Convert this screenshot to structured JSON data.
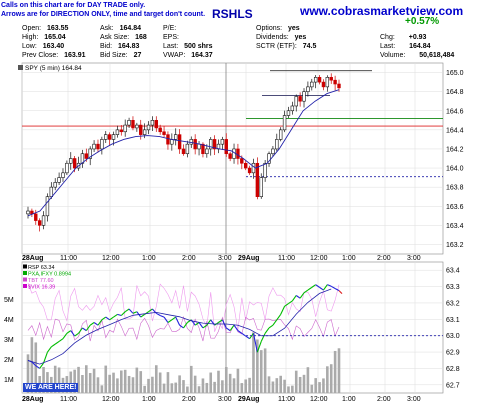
{
  "header": {
    "note_line1": "Calls on this chart are for DAY TRADE only.",
    "note_line2": "Arrows are for DIRECTION ONLY, time and target don't count.",
    "title_fragment": "RSHLS",
    "website": "www.cobrasmarketview.com",
    "change_pct": "+0.57%",
    "fields": [
      {
        "label": "Open:",
        "value": "163.55"
      },
      {
        "label": "High:",
        "value": "165.04"
      },
      {
        "label": "Low:",
        "value": "163.40"
      },
      {
        "label": "Prev Close:",
        "value": "163.91"
      },
      {
        "label": "Ask:",
        "value": "164.84"
      },
      {
        "label": "Ask Size:",
        "value": "168"
      },
      {
        "label": "Bid:",
        "value": "164.83"
      },
      {
        "label": "Bid Size:",
        "value": "27"
      },
      {
        "label": "P/E:",
        "value": ""
      },
      {
        "label": "EPS:",
        "value": ""
      },
      {
        "label": "Last:",
        "value": "500 shrs"
      },
      {
        "label": "VWAP:",
        "value": "164.37"
      },
      {
        "label": "Options:",
        "value": "yes"
      },
      {
        "label": "Dividends:",
        "value": "yes"
      },
      {
        "label": "SCTR (ETF):",
        "value": "74.5"
      },
      {
        "label": "Chg:",
        "value": "+0.93"
      },
      {
        "label": "Last:",
        "value": "164.84"
      },
      {
        "label": "Volume:",
        "value": "50,618,484"
      }
    ]
  },
  "chart_data": [
    {
      "type": "candlestick",
      "legend": "SPY (5 min) 164.84",
      "ylim": [
        163.1,
        165.1
      ],
      "y_ticks": [
        165.0,
        164.8,
        164.6,
        164.4,
        164.2,
        164.0,
        163.8,
        163.6,
        163.4,
        163.2
      ],
      "x_tick_labels": [
        "28Aug",
        "11:00",
        "12:00",
        "1:00",
        "2:00",
        "3:00",
        "29Aug",
        "11:00",
        "12:00",
        "1:00",
        "2:00",
        "3:00"
      ],
      "closes": [
        163.55,
        163.52,
        163.45,
        163.4,
        163.5,
        163.7,
        163.8,
        163.85,
        163.9,
        163.95,
        164.05,
        164.1,
        164.0,
        164.05,
        164.15,
        164.1,
        164.2,
        164.25,
        164.2,
        164.3,
        164.35,
        164.3,
        164.35,
        164.4,
        164.38,
        164.45,
        164.5,
        164.42,
        164.45,
        164.35,
        164.4,
        164.45,
        164.5,
        164.42,
        164.38,
        164.35,
        164.25,
        164.3,
        164.35,
        164.2,
        164.15,
        164.25,
        164.3,
        164.2,
        164.25,
        164.15,
        164.2,
        164.3,
        164.2,
        164.25,
        164.3,
        164.15,
        164.1,
        164.2,
        164.1,
        164.05,
        164.0,
        163.95,
        164.05,
        163.7,
        163.9,
        164.05,
        164.15,
        164.2,
        164.3,
        164.4,
        164.55,
        164.6,
        164.65,
        164.75,
        164.7,
        164.8,
        164.85,
        164.9,
        164.95,
        164.9,
        164.85,
        164.95,
        164.92,
        164.88,
        164.84
      ],
      "moving_average": [
        163.5,
        163.55,
        163.7,
        163.85,
        164.0,
        164.1,
        164.18,
        164.25,
        164.3,
        164.33,
        164.34,
        164.33,
        164.3,
        164.28,
        164.26,
        164.23,
        164.2,
        164.18,
        164.1,
        164.0,
        164.05,
        164.2,
        164.4,
        164.6,
        164.7,
        164.78,
        164.82
      ],
      "reference_levels": [
        {
          "value": 164.44,
          "color": "#dd2222"
        },
        {
          "value": 164.52,
          "color": "#118811"
        },
        {
          "value": 164.76,
          "color": "#333366"
        },
        {
          "value": 163.91,
          "color": "#2222aa"
        },
        {
          "value": 165.02,
          "color": "#333333"
        }
      ]
    },
    {
      "type": "line",
      "legends": [
        "RSP 63.34",
        "PXA,IFXY 0.8994",
        "TBT 77.60",
        "$VIX 16.39"
      ],
      "y_ticks_right": [
        63.4,
        63.3,
        63.2,
        63.1,
        63.0,
        62.9,
        62.8,
        62.7
      ],
      "y_ticks_left": [
        "5M",
        "4M",
        "3M",
        "2M",
        "1M"
      ],
      "ylim": [
        62.65,
        63.45
      ],
      "x_tick_labels": [
        "28Aug",
        "11:00",
        "12:00",
        "1:00",
        "2:00",
        "3:00",
        "29Aug",
        "11:00",
        "12:00",
        "1:00",
        "2:00",
        "3:00"
      ],
      "reference_level": 63.0
    }
  ],
  "footer": {
    "badge": "WE ARE HERE!"
  }
}
